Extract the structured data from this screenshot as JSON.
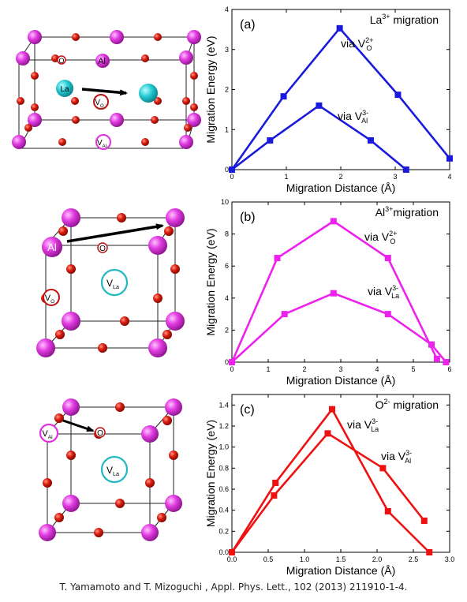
{
  "caption": "T. Yamamoto and T. Mizoguchi , Appl. Phys. Lett., 102 (2013) 211910-1-4.",
  "crystal_labels": {
    "la": "La",
    "al": "Al",
    "o": "O",
    "v": "V",
    "sub_o": "O",
    "sub_al": "Al",
    "sub_la": "La"
  },
  "chart_data": [
    {
      "type": "line",
      "panel": "(a)",
      "title": "La",
      "title_sup": "3+",
      "title_rest": " migration",
      "xlabel": "Migration Distance (Å)",
      "ylabel": "Migration Energy (eV)",
      "xlim": [
        0,
        4
      ],
      "ylim": [
        0,
        4
      ],
      "xticks": [
        0,
        1,
        2,
        3,
        4
      ],
      "yticks": [
        0,
        1,
        2,
        3,
        4
      ],
      "color": "#1a1adc",
      "series": [
        {
          "label": "via V",
          "label_sub": "O",
          "label_sup": "2+",
          "x": [
            0,
            0.95,
            1.98,
            3.05,
            4.0
          ],
          "y": [
            0,
            1.83,
            3.53,
            1.87,
            0.28
          ]
        },
        {
          "label": "via V",
          "label_sub": "Al",
          "label_sup": "3-",
          "x": [
            0,
            0.7,
            1.6,
            2.55,
            3.2
          ],
          "y": [
            0,
            0.73,
            1.6,
            0.73,
            0
          ]
        }
      ]
    },
    {
      "type": "line",
      "panel": "(b)",
      "title": "Al",
      "title_sup": "3+",
      "title_rest": "migration",
      "xlabel": "Migration Distance (Å)",
      "ylabel": "Migration Energy (eV)",
      "xlim": [
        0,
        6
      ],
      "ylim": [
        0,
        10
      ],
      "xticks": [
        0,
        1,
        2,
        3,
        4,
        5,
        6
      ],
      "yticks": [
        0,
        2,
        4,
        6,
        8,
        10
      ],
      "color": "#ee22ee",
      "series": [
        {
          "label": "via V",
          "label_sub": "O",
          "label_sup": "2+",
          "x": [
            0,
            1.25,
            2.8,
            4.3,
            5.65
          ],
          "y": [
            0,
            6.5,
            8.8,
            6.5,
            0.2
          ]
        },
        {
          "label": "via V",
          "label_sub": "La",
          "label_sup": "3-",
          "x": [
            0,
            1.45,
            2.8,
            4.3,
            5.5,
            5.9
          ],
          "y": [
            0,
            3.0,
            4.3,
            3.0,
            1.1,
            0
          ]
        }
      ]
    },
    {
      "type": "line",
      "panel": "(c)",
      "title": "O",
      "title_sup": "2-",
      "title_rest": " migration",
      "xlabel": "Migration Distance (Å)",
      "ylabel": "Migration Energy (eV)",
      "xlim": [
        0,
        3.0
      ],
      "ylim": [
        0,
        1.5
      ],
      "xticks": [
        "0.0",
        "0.5",
        "1.0",
        "1.5",
        "2.0",
        "2.5",
        "3.0"
      ],
      "yticks": [
        "0.0",
        "0.2",
        "0.4",
        "0.6",
        "0.8",
        "1.0",
        "1.2",
        "1.4"
      ],
      "color": "#ee1111",
      "series": [
        {
          "label": "via V",
          "label_sub": "La",
          "label_sup": "3-",
          "x": [
            0,
            0.6,
            1.38,
            2.15,
            2.72
          ],
          "y": [
            0,
            0.66,
            1.36,
            0.39,
            0
          ]
        },
        {
          "label": "via V",
          "label_sub": "Al",
          "label_sup": "3-",
          "x": [
            0,
            0.58,
            1.32,
            2.08,
            2.65
          ],
          "y": [
            0,
            0.54,
            1.13,
            0.8,
            0.3
          ]
        }
      ]
    }
  ]
}
